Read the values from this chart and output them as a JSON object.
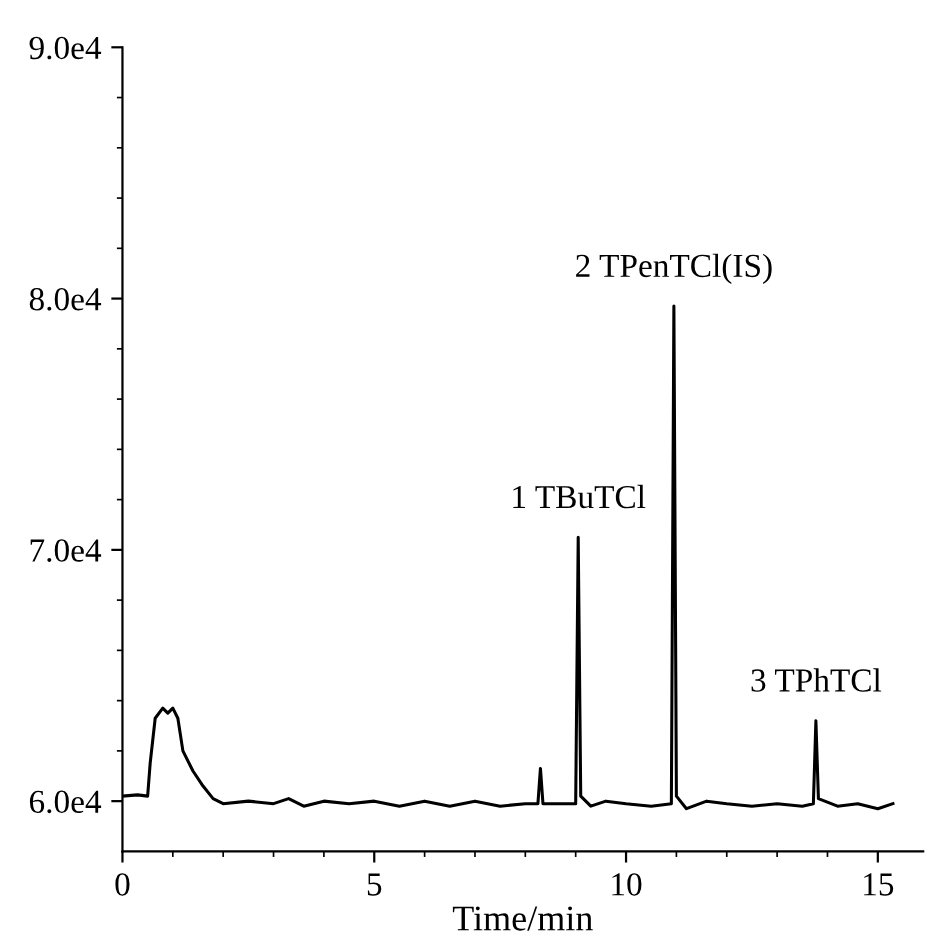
{
  "chart_data": {
    "type": "line",
    "xlabel": "Time/min",
    "color": "#000000",
    "x": [
      0,
      0.3,
      0.5,
      0.55,
      0.65,
      0.8,
      0.9,
      1.0,
      1.1,
      1.2,
      1.4,
      1.6,
      1.8,
      2.0,
      2.5,
      3.0,
      3.3,
      3.6,
      4.0,
      4.5,
      5.0,
      5.5,
      6.0,
      6.5,
      7.0,
      7.5,
      8.0,
      8.25,
      8.3,
      8.35,
      8.7,
      9.0,
      9.05,
      9.1,
      9.3,
      9.6,
      10.0,
      10.5,
      10.9,
      10.95,
      11.0,
      11.2,
      11.6,
      12.0,
      12.5,
      13.0,
      13.5,
      13.72,
      13.77,
      13.82,
      14.2,
      14.6,
      15.0,
      15.3
    ],
    "values": [
      60200,
      60250,
      60200,
      61500,
      63300,
      63700,
      63500,
      63700,
      63300,
      62000,
      61200,
      60600,
      60100,
      59900,
      60000,
      59900,
      60100,
      59800,
      60000,
      59900,
      60000,
      59800,
      60000,
      59800,
      60000,
      59800,
      59900,
      59900,
      61300,
      59900,
      59900,
      59900,
      70500,
      60200,
      59800,
      60000,
      59900,
      59800,
      59900,
      79700,
      60200,
      59700,
      60000,
      59900,
      59800,
      59900,
      59800,
      59900,
      63200,
      60100,
      59800,
      59900,
      59700,
      59900
    ],
    "xlim": [
      0,
      15.9
    ],
    "ylim": [
      58000,
      90000
    ],
    "xticks": [
      0,
      {
        "value": 1,
        "label": null
      },
      {
        "value": 2,
        "label": null
      },
      {
        "value": 3,
        "label": null
      },
      {
        "value": 4,
        "label": null
      },
      5,
      {
        "value": 6,
        "label": null
      },
      {
        "value": 7,
        "label": null
      },
      {
        "value": 8,
        "label": null
      },
      {
        "value": 9,
        "label": null
      },
      10,
      {
        "value": 11,
        "label": null
      },
      {
        "value": 12,
        "label": null
      },
      {
        "value": 13,
        "label": null
      },
      {
        "value": 14,
        "label": null
      },
      15
    ],
    "yticks": [
      {
        "value": 60000,
        "label": "6.0e4"
      },
      {
        "value": 62000,
        "label": null
      },
      {
        "value": 64000,
        "label": null
      },
      {
        "value": 66000,
        "label": null
      },
      {
        "value": 68000,
        "label": null
      },
      {
        "value": 70000,
        "label": "7.0e4"
      },
      {
        "value": 72000,
        "label": null
      },
      {
        "value": 74000,
        "label": null
      },
      {
        "value": 76000,
        "label": null
      },
      {
        "value": 78000,
        "label": null
      },
      {
        "value": 80000,
        "label": "8.0e4"
      },
      {
        "value": 82000,
        "label": null
      },
      {
        "value": 84000,
        "label": null
      },
      {
        "value": 86000,
        "label": null
      },
      {
        "value": 88000,
        "label": null
      },
      {
        "value": 90000,
        "label": "9.0e4"
      }
    ],
    "annotations": [
      {
        "text": "1 TBuTCl",
        "x": 9.05,
        "y": 70500
      },
      {
        "text": "2 TPenTCl(IS)",
        "x": 10.95,
        "y": 79700
      },
      {
        "text": "3 TPhTCl",
        "x": 13.77,
        "y": 63200
      }
    ],
    "grid": false,
    "legend": false,
    "marker": "none",
    "line_style": "solid"
  }
}
